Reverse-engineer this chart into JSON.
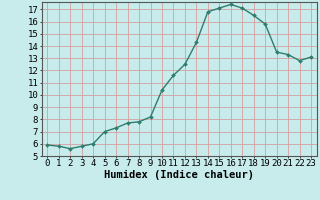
{
  "x": [
    0,
    1,
    2,
    3,
    4,
    5,
    6,
    7,
    8,
    9,
    10,
    11,
    12,
    13,
    14,
    15,
    16,
    17,
    18,
    19,
    20,
    21,
    22,
    23
  ],
  "y": [
    5.9,
    5.8,
    5.6,
    5.8,
    6.0,
    7.0,
    7.3,
    7.7,
    7.8,
    8.2,
    10.4,
    11.6,
    12.5,
    14.3,
    16.8,
    17.1,
    17.4,
    17.1,
    16.5,
    15.8,
    13.5,
    13.3,
    12.8,
    13.1
  ],
  "line_color": "#2e7d6e",
  "marker_color": "#2e7d6e",
  "bg_color": "#c8ecec",
  "grid_color": "#d4a0a0",
  "xlabel": "Humidex (Indice chaleur)",
  "ylabel_ticks": [
    5,
    6,
    7,
    8,
    9,
    10,
    11,
    12,
    13,
    14,
    15,
    16,
    17
  ],
  "xlim": [
    -0.5,
    23.5
  ],
  "ylim": [
    5,
    17.6
  ],
  "xtick_labels": [
    "0",
    "1",
    "2",
    "3",
    "4",
    "5",
    "6",
    "7",
    "8",
    "9",
    "10",
    "11",
    "12",
    "13",
    "14",
    "15",
    "16",
    "17",
    "18",
    "19",
    "20",
    "21",
    "22",
    "23"
  ],
  "font_size_xlabel": 7.5,
  "font_size_ticks": 6.5
}
